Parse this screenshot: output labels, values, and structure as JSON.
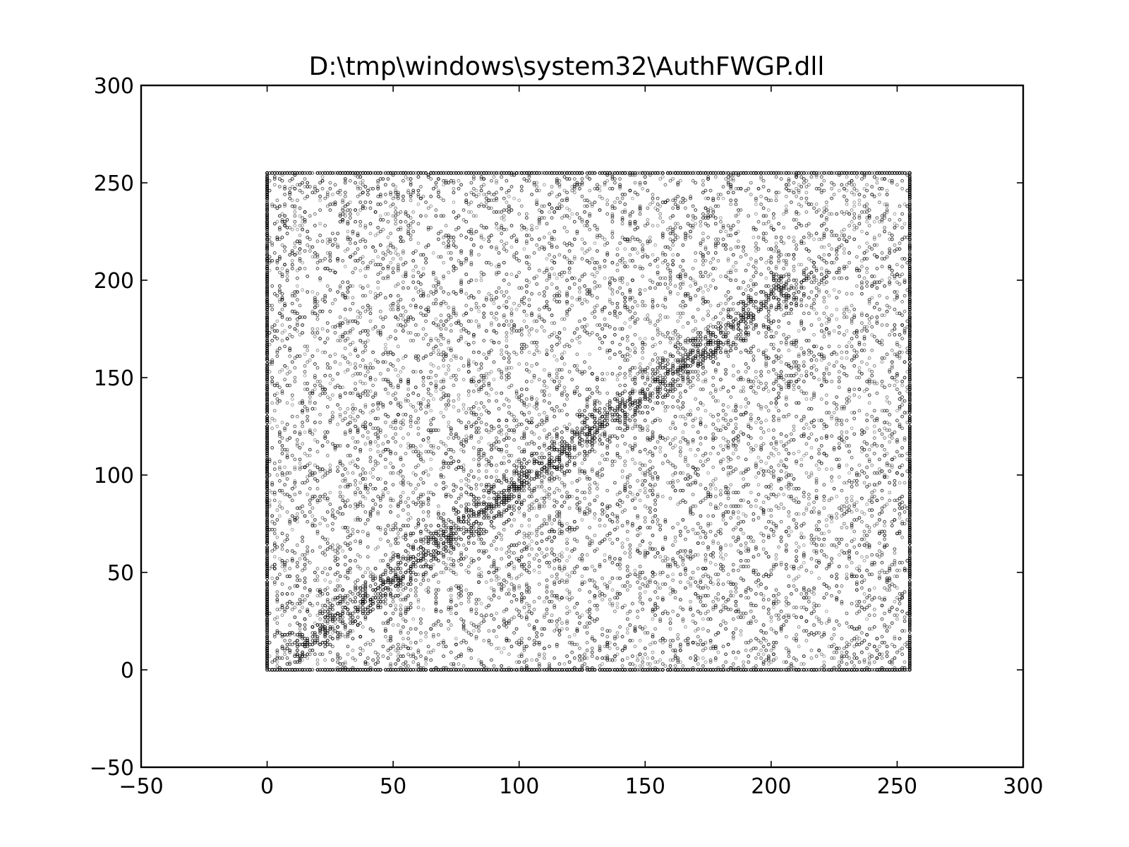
{
  "chart_data": {
    "type": "scatter",
    "title": "D:\\tmp\\windows\\system32\\AuthFWGP.dll",
    "xlabel": "",
    "ylabel": "",
    "xlim": [
      -50,
      300
    ],
    "ylim": [
      -50,
      300
    ],
    "x_ticks": [
      -50,
      0,
      50,
      100,
      150,
      200,
      250,
      300
    ],
    "y_ticks": [
      -50,
      0,
      50,
      100,
      150,
      200,
      250,
      300
    ],
    "x_tick_labels": [
      "−50",
      "0",
      "50",
      "100",
      "150",
      "200",
      "250",
      "300"
    ],
    "y_tick_labels": [
      "−50",
      "0",
      "50",
      "100",
      "150",
      "200",
      "250",
      "300"
    ],
    "grid": false,
    "legend": "none",
    "marker_color": "#000000",
    "points": {
      "x_range": [
        0,
        255
      ],
      "y_range": [
        0,
        255
      ],
      "description": "byte-pair scatter covering the full 0-255 square, denser along the diagonal"
    }
  }
}
